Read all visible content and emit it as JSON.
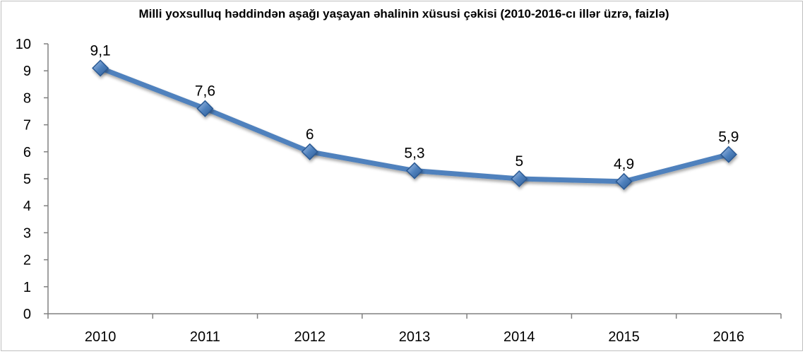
{
  "chart_data": {
    "type": "line",
    "title": "Milli yoxsulluq həddindən aşağı yaşayan əhalinin xüsusi çəkisi (2010-2016-cı illər üzrə, faizlə)",
    "categories": [
      "2010",
      "2011",
      "2012",
      "2013",
      "2014",
      "2015",
      "2016"
    ],
    "series": [
      {
        "values": [
          9.1,
          7.6,
          6,
          5.3,
          5,
          4.9,
          5.9
        ],
        "data_labels": [
          "9,1",
          "7,6",
          "6",
          "5,3",
          "5",
          "4,9",
          "5,9"
        ],
        "color": "#4F81BD",
        "marker": "diamond"
      }
    ],
    "ylim": [
      0,
      10
    ],
    "y_ticks": [
      "0",
      "1",
      "2",
      "3",
      "4",
      "5",
      "6",
      "7",
      "8",
      "9",
      "10"
    ],
    "xlabel": "",
    "ylabel": "",
    "grid": false,
    "legend": "none"
  }
}
